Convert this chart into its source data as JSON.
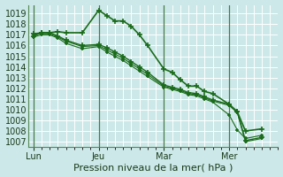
{
  "xlabel": "Pression niveau de la mer( hPa )",
  "bg_color": "#cce8e8",
  "grid_color": "#ffffff",
  "line_color": "#1a6b1a",
  "vline_color": "#4a7a4a",
  "ylim": [
    1006.5,
    1019.8
  ],
  "yticks": [
    1007,
    1008,
    1009,
    1010,
    1011,
    1012,
    1013,
    1014,
    1015,
    1016,
    1017,
    1018,
    1019
  ],
  "xtick_labels": [
    "Lun",
    "Jeu",
    "Mar",
    "Mer"
  ],
  "xtick_positions": [
    0,
    24,
    48,
    72
  ],
  "vline_positions": [
    0,
    24,
    48,
    72
  ],
  "xlim": [
    -2,
    90
  ],
  "series": [
    {
      "x": [
        0,
        3,
        6,
        9,
        12,
        18,
        24,
        27,
        30,
        33,
        36,
        39,
        42,
        48,
        51,
        54,
        57,
        60,
        63,
        66,
        72,
        75,
        78,
        84
      ],
      "y": [
        1016.9,
        1017.2,
        1017.2,
        1017.3,
        1017.2,
        1017.2,
        1019.3,
        1018.8,
        1018.3,
        1018.3,
        1017.8,
        1017.0,
        1016.0,
        1013.8,
        1013.5,
        1012.8,
        1012.2,
        1012.2,
        1011.7,
        1011.5,
        1010.5,
        1009.8,
        1008.0,
        1008.2
      ],
      "marker": "+",
      "markersize": 5,
      "linewidth": 1.2
    },
    {
      "x": [
        0,
        3,
        6,
        9,
        12,
        18,
        24,
        27,
        30,
        33,
        36,
        39,
        42,
        48,
        51,
        54,
        57,
        60,
        63,
        66,
        72,
        75,
        78,
        84
      ],
      "y": [
        1017.1,
        1017.2,
        1017.2,
        1016.9,
        1016.5,
        1016.0,
        1016.1,
        1015.8,
        1015.4,
        1015.0,
        1014.5,
        1014.0,
        1013.5,
        1012.3,
        1012.1,
        1011.9,
        1011.6,
        1011.5,
        1011.2,
        1010.9,
        1010.5,
        1009.8,
        1007.1,
        1007.4
      ],
      "marker": "+",
      "markersize": 4,
      "linewidth": 1.0
    },
    {
      "x": [
        0,
        3,
        6,
        9,
        12,
        18,
        24,
        27,
        30,
        33,
        36,
        39,
        42,
        48,
        51,
        54,
        57,
        60,
        63,
        66,
        72,
        75,
        78,
        84
      ],
      "y": [
        1017.0,
        1017.1,
        1017.1,
        1016.8,
        1016.4,
        1015.9,
        1016.0,
        1015.6,
        1015.2,
        1014.8,
        1014.3,
        1013.8,
        1013.3,
        1012.2,
        1012.0,
        1011.8,
        1011.5,
        1011.4,
        1011.1,
        1010.8,
        1010.4,
        1009.7,
        1007.0,
        1007.3
      ],
      "marker": "+",
      "markersize": 3,
      "linewidth": 0.8
    },
    {
      "x": [
        0,
        3,
        6,
        9,
        12,
        18,
        24,
        27,
        30,
        33,
        36,
        39,
        42,
        48,
        51,
        54,
        57,
        60,
        63,
        66,
        72,
        75,
        78,
        84
      ],
      "y": [
        1016.8,
        1017.0,
        1017.0,
        1016.7,
        1016.2,
        1015.7,
        1015.9,
        1015.4,
        1015.0,
        1014.6,
        1014.1,
        1013.6,
        1013.1,
        1012.1,
        1011.9,
        1011.7,
        1011.4,
        1011.3,
        1011.0,
        1010.7,
        1009.5,
        1008.1,
        1007.3,
        1007.6
      ],
      "marker": "+",
      "markersize": 3,
      "linewidth": 0.8
    }
  ]
}
